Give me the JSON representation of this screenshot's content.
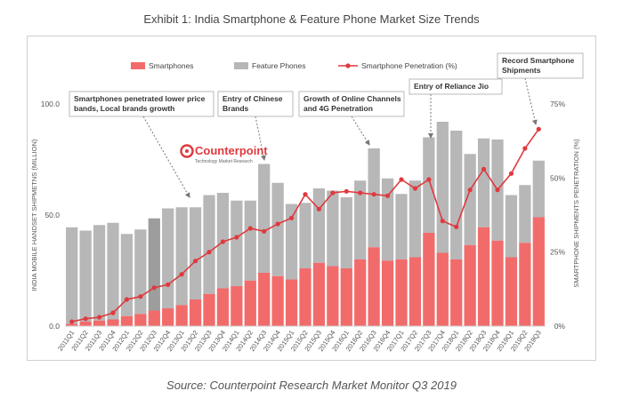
{
  "header": {
    "title": "Exhibit 1: India Smartphone & Feature Phone Market Size Trends",
    "source": "Source: Counterpoint Research Market Monitor Q3 2019"
  },
  "logo": {
    "name": "Counterpoint",
    "tagline": "Technology Market Research"
  },
  "colors": {
    "smartphones": "#f26b6b",
    "feature_phones": "#b7b7b7",
    "feature_phones_dark": "#9d9d9d",
    "penetration": "#e0393e",
    "callout_border": "#aaaaaa",
    "axis_text": "#555555"
  },
  "chart_data": {
    "type": "bar",
    "stacked": true,
    "title": "Exhibit 1: India Smartphone & Feature Phone Market Size Trends",
    "ylabel": "INDIA MOBILE HANDSET SHIPMETNS (MILLION)",
    "y2label": "SMARTPHONE SHIPMENTS PENETRATION (%)",
    "ylim": [
      0,
      100
    ],
    "yticks": [
      0.0,
      50.0,
      100.0
    ],
    "ytick_labels": [
      "0.0",
      "50.0",
      "100.0"
    ],
    "y2lim": [
      0,
      75
    ],
    "y2ticks": [
      0,
      25,
      50,
      75
    ],
    "y2tick_labels": [
      "0%",
      "25%",
      "50%",
      "75%"
    ],
    "legend_placement": "top",
    "categories": [
      "2011Q1",
      "2011Q2",
      "2011Q3",
      "2011Q4",
      "2012Q1",
      "2012Q2",
      "2012Q3",
      "2012Q4",
      "2013Q1",
      "2013Q2",
      "2013Q3",
      "2013Q4",
      "2014Q1",
      "2014Q2",
      "2014Q3",
      "2014Q4",
      "2015Q1",
      "2015Q2",
      "2015Q3",
      "2015Q4",
      "2016Q1",
      "2016Q2",
      "2016Q3",
      "2016Q4",
      "2017Q1",
      "2017Q2",
      "2017Q3",
      "2017Q4",
      "2018Q1",
      "2018Q2",
      "2018Q3",
      "2018Q4",
      "2019Q1",
      "2019Q2",
      "2019Q3"
    ],
    "series": [
      {
        "name": "Smartphones",
        "type": "bar",
        "values": [
          1.0,
          2.0,
          2.5,
          3.0,
          4.5,
          5.5,
          7.0,
          8.0,
          9.5,
          12.0,
          14.5,
          17.0,
          18.0,
          20.5,
          24.0,
          22.5,
          21.0,
          26.0,
          28.5,
          27.0,
          26.0,
          30.0,
          35.5,
          29.5,
          30.0,
          31.0,
          42.0,
          33.0,
          30.0,
          36.5,
          44.5,
          38.5,
          31.0,
          37.5,
          49.0
        ]
      },
      {
        "name": "Feature Phones",
        "type": "bar",
        "values": [
          43.5,
          41.0,
          43.0,
          43.5,
          37.0,
          38.0,
          41.5,
          45.0,
          44.0,
          41.5,
          44.5,
          43.0,
          38.5,
          36.0,
          49.0,
          42.0,
          34.0,
          29.5,
          33.5,
          34.0,
          32.0,
          35.5,
          44.5,
          37.0,
          29.5,
          34.5,
          43.0,
          59.0,
          58.0,
          41.0,
          40.0,
          45.5,
          28.0,
          26.0,
          25.5
        ]
      },
      {
        "name": "Smartphone Penetration (%)",
        "type": "line",
        "axis": "y2",
        "values": [
          1.5,
          2.5,
          3.0,
          4.5,
          9.0,
          10.0,
          13.0,
          14.0,
          17.5,
          22.0,
          25.0,
          28.5,
          30.0,
          33.0,
          32.0,
          34.5,
          36.5,
          44.5,
          39.5,
          45.0,
          45.5,
          45.0,
          44.5,
          44.0,
          49.5,
          46.5,
          49.5,
          35.5,
          33.5,
          46.0,
          53.0,
          46.0,
          51.5,
          60.0,
          66.5
        ]
      }
    ],
    "annotations": [
      {
        "text": "Smartphones penetrated lower price bands, Local brands growth",
        "target": "2013Q2"
      },
      {
        "text": "Entry of Chinese Brands",
        "target": "2014Q3"
      },
      {
        "text": "Growth of Online Channels and 4G Penetration",
        "target": "2016Q3"
      },
      {
        "text": "Entry of Reliance Jio",
        "target": "2017Q3"
      },
      {
        "text": "Record Smartphone Shipments",
        "target": "2019Q3"
      }
    ]
  }
}
